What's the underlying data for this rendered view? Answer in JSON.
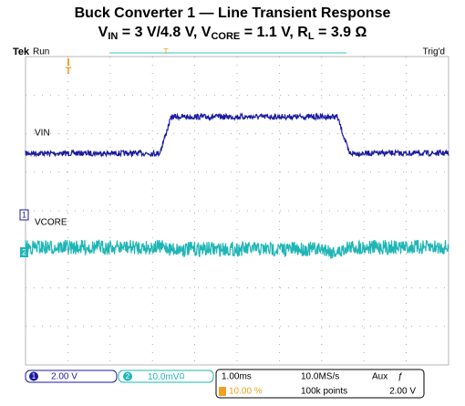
{
  "header": {
    "title": "Buck Converter 1 — Line Transient Response",
    "subtitle": [
      "V",
      "IN",
      " = 3 V/4.8 V, V",
      "CORE",
      " = 1.1 V, R",
      "L",
      " = 3.9 Ω"
    ]
  },
  "scope": {
    "brand": "Tek",
    "state": "Run",
    "trigger_state": "Trig'd",
    "trigger_marker": "T",
    "channels": [
      {
        "marker": "1",
        "label": "VIN"
      },
      {
        "marker": "2",
        "label": "VCORE"
      }
    ]
  },
  "status_bar": {
    "ch1": {
      "number": "1",
      "scale": "2.00 V"
    },
    "ch2": {
      "number": "2",
      "scale": "10.0mV",
      "bw": "Ω"
    },
    "timebase": "1.00ms",
    "sample_rate": "10.0MS/s",
    "trigger_source": "Aux",
    "trigger_slope": "ƒ",
    "trigger_position": "10.00 %",
    "record_length": "100k points",
    "trigger_level": "2.00 V"
  }
}
